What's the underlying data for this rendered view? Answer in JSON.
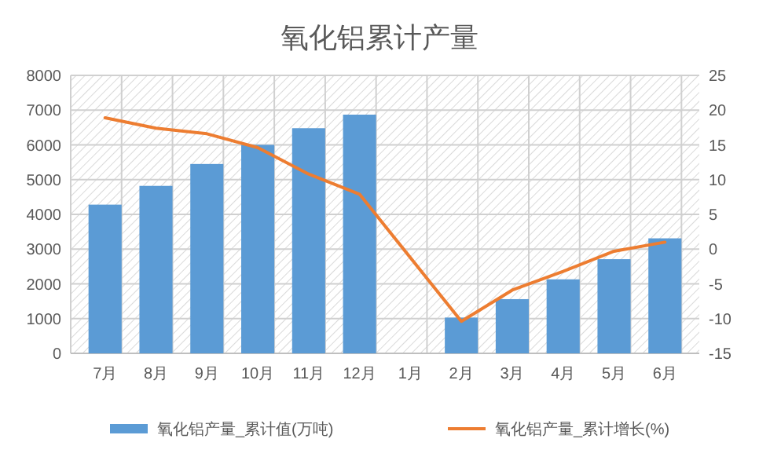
{
  "chart_data": {
    "type": "bar",
    "title": "氧化铝累计产量",
    "categories": [
      "7月",
      "8月",
      "9月",
      "10月",
      "11月",
      "12月",
      "1月",
      "2月",
      "3月",
      "4月",
      "5月",
      "6月"
    ],
    "series": [
      {
        "name": "氧化铝产量_累计值(万吨)",
        "color": "#5b9bd5",
        "values": [
          4280,
          4820,
          5450,
          6000,
          6480,
          6870,
          null,
          1030,
          1560,
          2130,
          2710,
          3310
        ]
      },
      {
        "name": "氧化铝产量_累计增长(%)",
        "type": "line",
        "axis": "y2",
        "color": "#ed7d31",
        "values": [
          18.9,
          17.4,
          16.6,
          14.6,
          10.8,
          7.9,
          null,
          -10.4,
          -5.9,
          -3.2,
          -0.3,
          1.0
        ]
      }
    ],
    "ylim": [
      0,
      8000
    ],
    "yticks": [
      0,
      1000,
      2000,
      3000,
      4000,
      5000,
      6000,
      7000,
      8000
    ],
    "y2lim": [
      -15,
      25
    ],
    "y2ticks": [
      -15,
      -10,
      -5,
      0,
      5,
      10,
      15,
      20,
      25
    ],
    "grid": true,
    "legend": "bottom"
  }
}
